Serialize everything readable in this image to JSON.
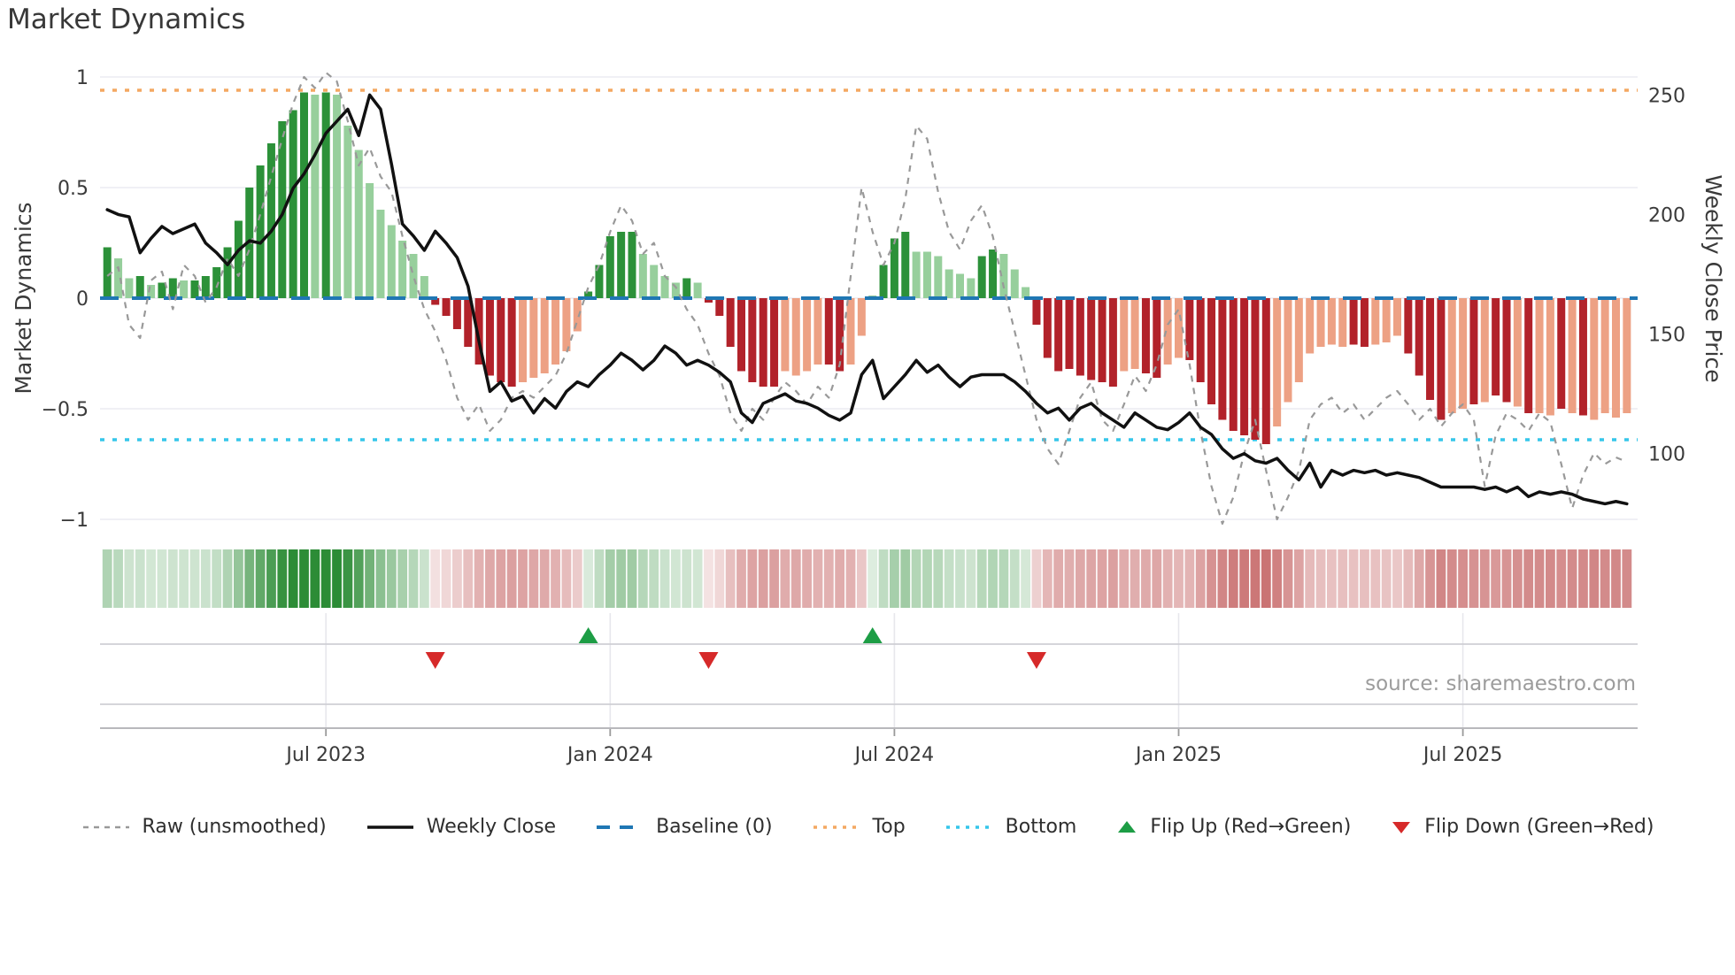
{
  "title": "Market Dynamics",
  "source": "source: sharemaestro.com",
  "y_axis": {
    "label": "Market Dynamics",
    "ticks": [
      {
        "v": 1,
        "label": "1"
      },
      {
        "v": 0.5,
        "label": "0.5"
      },
      {
        "v": 0,
        "label": "0"
      },
      {
        "v": -0.5,
        "label": "−0.5"
      },
      {
        "v": -1,
        "label": "−1"
      }
    ]
  },
  "price_axis": {
    "label": "Weekly Close Price",
    "ticks": [
      {
        "p": 250,
        "label": "250"
      },
      {
        "p": 200,
        "label": "200"
      },
      {
        "p": 150,
        "label": "150"
      },
      {
        "p": 100,
        "label": "100"
      }
    ]
  },
  "x_axis": {
    "ticks": [
      {
        "week": 20,
        "label": "Jul 2023"
      },
      {
        "week": 46,
        "label": "Jan 2024"
      },
      {
        "week": 72,
        "label": "Jul 2024"
      },
      {
        "week": 98,
        "label": "Jan 2025"
      },
      {
        "week": 124,
        "label": "Jul 2025"
      }
    ]
  },
  "colors": {
    "bar_pos_strong": "#2c9139",
    "bar_pos_soft": "#97cf9c",
    "bar_neg_strong": "#b2222a",
    "bar_neg_soft": "#eda184",
    "close": "#111111",
    "raw": "#999999",
    "baseline": "#1f77b4",
    "top": "#f4a862",
    "bottom": "#35c6ea",
    "flip_up": "#1d9d45",
    "flip_down": "#d62a2a",
    "grid": "#ebebf2",
    "panel_line": "#cfcfd4",
    "axis_line": "#b8b8bc",
    "text": "#3a3a3a",
    "muted": "#9c9c9c"
  },
  "legend": {
    "items": [
      {
        "label": "Raw (unsmoothed)",
        "swatch": "raw-dashed"
      },
      {
        "label": "Weekly Close",
        "swatch": "solid"
      },
      {
        "label": "Baseline (0)",
        "swatch": "baseline-dashed"
      },
      {
        "label": "Top",
        "swatch": "top-dotted"
      },
      {
        "label": "Bottom",
        "swatch": "bottom-dotted"
      },
      {
        "label": "Flip Up (Red→Green)",
        "swatch": "tri-up"
      },
      {
        "label": "Flip Down (Green→Red)",
        "swatch": "tri-down"
      }
    ]
  },
  "chart_data": {
    "type": "bar+line composite (weekly oscillator with price overlay, heatmap strip and flip markers)",
    "weeks": 140,
    "left_ylim": [
      -1,
      1
    ],
    "baseline": 0,
    "top_threshold": 0.94,
    "bottom_threshold": -0.64,
    "grid": "horizontal only in main panel",
    "legend_position": "bottom center",
    "bars": {
      "name": "Market Dynamics (smoothed)",
      "values": [
        0.23,
        0.18,
        0.09,
        0.1,
        0.06,
        0.07,
        0.09,
        0.08,
        0.08,
        0.1,
        0.14,
        0.23,
        0.35,
        0.5,
        0.6,
        0.7,
        0.8,
        0.85,
        0.93,
        0.92,
        0.93,
        0.92,
        0.78,
        0.67,
        0.52,
        0.4,
        0.33,
        0.26,
        0.2,
        0.1,
        -0.03,
        -0.08,
        -0.14,
        -0.22,
        -0.3,
        -0.35,
        -0.38,
        -0.4,
        -0.38,
        -0.36,
        -0.34,
        -0.3,
        -0.24,
        -0.15,
        0.03,
        0.15,
        0.28,
        0.3,
        0.3,
        0.2,
        0.15,
        0.1,
        0.07,
        0.09,
        0.07,
        -0.02,
        -0.08,
        -0.22,
        -0.33,
        -0.38,
        -0.4,
        -0.4,
        -0.33,
        -0.35,
        -0.33,
        -0.3,
        -0.3,
        -0.33,
        -0.3,
        -0.17,
        0.01,
        0.15,
        0.27,
        0.3,
        0.21,
        0.21,
        0.19,
        0.13,
        0.11,
        0.09,
        0.19,
        0.22,
        0.2,
        0.13,
        0.05,
        -0.12,
        -0.27,
        -0.33,
        -0.32,
        -0.35,
        -0.37,
        -0.38,
        -0.4,
        -0.33,
        -0.32,
        -0.34,
        -0.36,
        -0.3,
        -0.27,
        -0.28,
        -0.38,
        -0.48,
        -0.55,
        -0.6,
        -0.62,
        -0.64,
        -0.66,
        -0.58,
        -0.47,
        -0.38,
        -0.25,
        -0.22,
        -0.21,
        -0.22,
        -0.21,
        -0.22,
        -0.21,
        -0.2,
        -0.17,
        -0.25,
        -0.35,
        -0.46,
        -0.55,
        -0.52,
        -0.5,
        -0.48,
        -0.47,
        -0.44,
        -0.47,
        -0.49,
        -0.52,
        -0.52,
        -0.53,
        -0.5,
        -0.52,
        -0.53,
        -0.55,
        -0.52,
        -0.54,
        -0.52
      ],
      "shade": "DLLDLDDLDDDDDDDDDDDLDLLLLLLLLLDDDDDDDDLLLLLLDDDDDLLLLDLDDDDDDDLLLLDDLLDDDDLLLLLLDDLLLDDDDDDDDLLDDLLDDDDDDDDLLLLLLLDDLLLDDDDLLDLDDLDLLDLDLLLL",
      "shade_legend": {
        "D": "strong/saturated bar",
        "L": "soft/light bar"
      }
    },
    "weekly_close_price": [
      202,
      200,
      199,
      184,
      190,
      195,
      192,
      194,
      196,
      188,
      184,
      179,
      185,
      189,
      188,
      193,
      200,
      211,
      217,
      225,
      234,
      239,
      244,
      233,
      250,
      244,
      221,
      196,
      191,
      185,
      193,
      188,
      182,
      170,
      147,
      126,
      130,
      122,
      124,
      117,
      123,
      119,
      126,
      130,
      128,
      133,
      137,
      142,
      139,
      135,
      139,
      145,
      142,
      137,
      139,
      137,
      134,
      130,
      117,
      113,
      121,
      123,
      125,
      122,
      121,
      119,
      116,
      114,
      117,
      133,
      139,
      123,
      128,
      133,
      139,
      134,
      137,
      132,
      128,
      132,
      133,
      133,
      133,
      130,
      126,
      121,
      117,
      119,
      114,
      119,
      121,
      117,
      114,
      111,
      117,
      114,
      111,
      110,
      113,
      117,
      111,
      108,
      102,
      98,
      100,
      97,
      96,
      98,
      93,
      89,
      96,
      86,
      93,
      91,
      93,
      92,
      93,
      91,
      92,
      91,
      90,
      88,
      86,
      86,
      86,
      86,
      85,
      86,
      84,
      86,
      82,
      84,
      83,
      84,
      83,
      81,
      80,
      79,
      80,
      79
    ],
    "raw_unsmoothed": [
      0.1,
      0.14,
      -0.12,
      -0.18,
      0.08,
      0.12,
      -0.05,
      0.15,
      0.1,
      -0.02,
      0.05,
      0.18,
      0.1,
      0.22,
      0.38,
      0.55,
      0.72,
      0.88,
      1.0,
      0.95,
      1.02,
      0.98,
      0.8,
      0.6,
      0.68,
      0.55,
      0.48,
      0.28,
      0.1,
      -0.05,
      -0.15,
      -0.28,
      -0.45,
      -0.55,
      -0.48,
      -0.6,
      -0.55,
      -0.45,
      -0.42,
      -0.45,
      -0.4,
      -0.35,
      -0.25,
      -0.1,
      0.05,
      0.15,
      0.3,
      0.42,
      0.35,
      0.2,
      0.25,
      0.1,
      0.05,
      -0.05,
      -0.12,
      -0.25,
      -0.35,
      -0.52,
      -0.6,
      -0.5,
      -0.55,
      -0.45,
      -0.38,
      -0.42,
      -0.48,
      -0.4,
      -0.45,
      -0.3,
      0.1,
      0.5,
      0.3,
      0.15,
      0.25,
      0.45,
      0.78,
      0.72,
      0.48,
      0.3,
      0.22,
      0.35,
      0.42,
      0.28,
      0.05,
      -0.15,
      -0.35,
      -0.55,
      -0.68,
      -0.75,
      -0.6,
      -0.45,
      -0.38,
      -0.55,
      -0.6,
      -0.48,
      -0.35,
      -0.42,
      -0.3,
      -0.12,
      -0.05,
      -0.3,
      -0.6,
      -0.85,
      -1.02,
      -0.9,
      -0.7,
      -0.55,
      -0.78,
      -1.0,
      -0.9,
      -0.78,
      -0.55,
      -0.48,
      -0.45,
      -0.52,
      -0.48,
      -0.55,
      -0.5,
      -0.45,
      -0.42,
      -0.48,
      -0.55,
      -0.5,
      -0.58,
      -0.52,
      -0.48,
      -0.55,
      -0.85,
      -0.62,
      -0.52,
      -0.55,
      -0.6,
      -0.52,
      -0.56,
      -0.75,
      -0.95,
      -0.8,
      -0.7,
      -0.75,
      -0.72,
      -0.74
    ],
    "heatmap": "one cell per week, green for positive / red for negative, intensity proportional to |value|",
    "flip_up_weeks": [
      44,
      70
    ],
    "flip_down_weeks": [
      30,
      55,
      85
    ]
  }
}
